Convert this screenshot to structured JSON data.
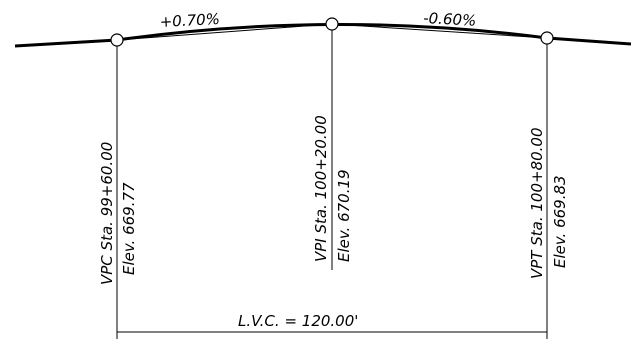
{
  "grades": {
    "incoming": "+0.70%",
    "outgoing": "-0.60%"
  },
  "points": {
    "vpc": {
      "station": "VPC Sta. 99+60.00",
      "elevation": "Elev. 669.77"
    },
    "vpi": {
      "station": "VPI Sta. 100+20.00",
      "elevation": "Elev. 670.19"
    },
    "vpt": {
      "station": "VPT Sta. 100+80.00",
      "elevation": "Elev. 669.83"
    }
  },
  "curve_length": "L.V.C. = 120.00'",
  "colors": {
    "ink": "#000000",
    "background": "#ffffff"
  }
}
